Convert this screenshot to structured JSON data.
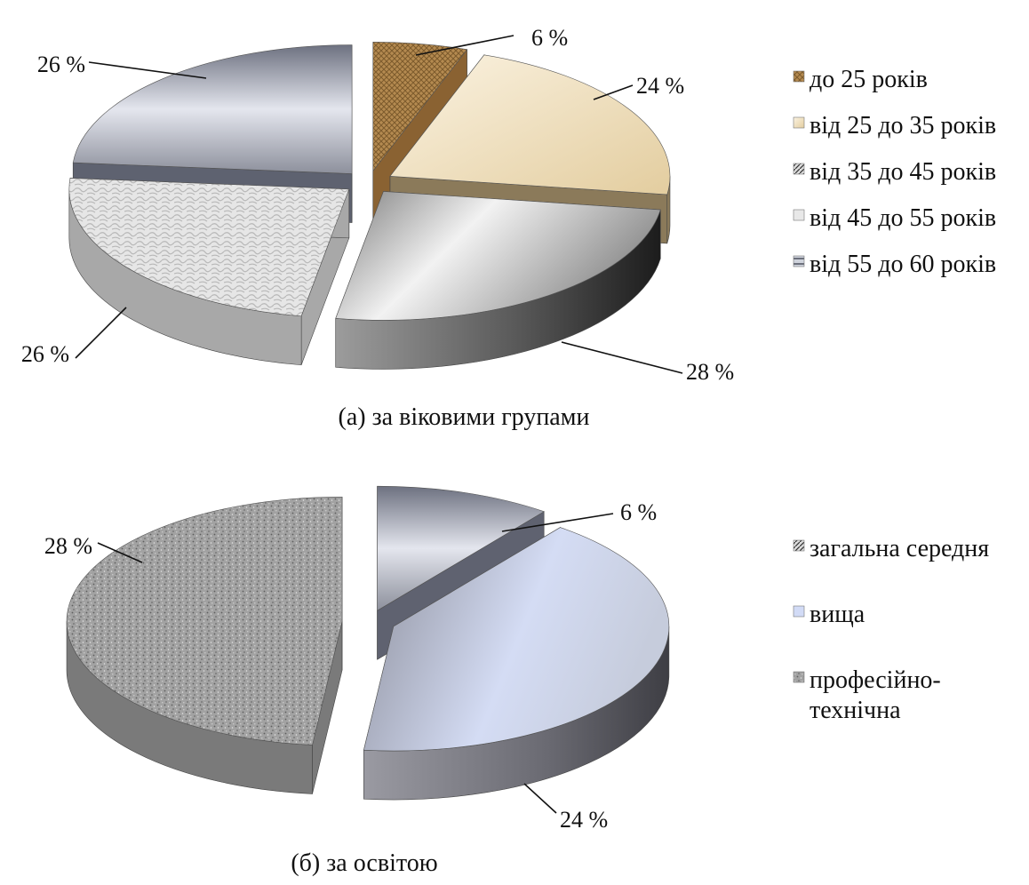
{
  "chart_data": [
    {
      "type": "pie",
      "caption": "(а) за віковими групами",
      "categories": [
        "до 25 років",
        "від 25 до 35 років",
        "від 35 до 45 років",
        "від 45 до 55 років",
        "від 55 до 60 років"
      ],
      "values": [
        6,
        24,
        28,
        26,
        26
      ],
      "value_labels": [
        "6 %",
        "24 %",
        "28 %",
        "26 %",
        "26 %"
      ],
      "colors": [
        "#a47a44",
        "#ead8b2",
        "#6f6f6f",
        "#cfcfcf",
        "#8b8f9c"
      ],
      "legend_position": "right",
      "style": "3d-exploded"
    },
    {
      "type": "pie",
      "caption": "(б) за освітою",
      "categories": [
        "загальна середня",
        "вища",
        "професійно-технічна"
      ],
      "legend_lines": [
        [
          "загальна середня"
        ],
        [
          "вища"
        ],
        [
          "професійно-",
          "технічна"
        ]
      ],
      "values": [
        6,
        24,
        28
      ],
      "value_labels": [
        "6 %",
        "24 %",
        "28 %"
      ],
      "colors": [
        "#8e929e",
        "#c4cee8",
        "#9a9a9a"
      ],
      "legend_position": "right",
      "style": "3d-exploded"
    }
  ]
}
